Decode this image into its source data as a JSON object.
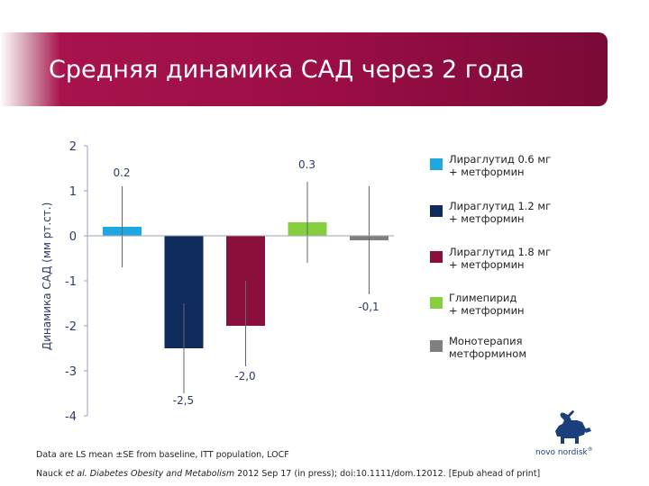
{
  "slide": {
    "title": "Средняя динамика САД через 2 года",
    "footnote": "Data are LS mean ±SE from baseline, ITT population, LOCF",
    "citation_authors": "Nauck ",
    "citation_etal": "et al. Diabetes Obesity and Metabolism",
    "citation_rest": " 2012 Sep 17 (in press); doi:10.1111/dom.12012. [Epub ahead of print]",
    "logo_text": "novo nordisk",
    "logo_mark": "®"
  },
  "colors": {
    "banner": "#9a0e45",
    "series": [
      "#1ea7e1",
      "#0f2a5c",
      "#8b0f3c",
      "#86cf3f",
      "#7f7f7f"
    ]
  },
  "legend": [
    {
      "label": "Лираглутид 0.6 мг\n+ метформин"
    },
    {
      "label": "Лираглутид 1.2 мг\n+ метформин"
    },
    {
      "label": "Лираглутид 1.8 мг\n+ метформин"
    },
    {
      "label": "Глимепирид\n+ метформин"
    },
    {
      "label": "Монотерапия\nметформином"
    }
  ],
  "chart_data": {
    "type": "bar",
    "ylabel": "Динамика САД (мм рт.ст.)",
    "ylim": [
      -4,
      2
    ],
    "yticks": [
      "2",
      "1",
      "0",
      "-1",
      "-2",
      "-3",
      "-4"
    ],
    "grid": false,
    "legend_position": "right",
    "series": [
      {
        "name": "Лираглутид 0.6 мг + метформин",
        "value": 0.2,
        "label": "0.2",
        "error_low": -0.7,
        "error_high": 1.1
      },
      {
        "name": "Лираглутид 1.2 мг + метформин",
        "value": -2.5,
        "label": "-2,5",
        "error_low": -3.5,
        "error_high": -1.5
      },
      {
        "name": "Лираглутид 1.8 мг + метформин",
        "value": -2.0,
        "label": "-2,0",
        "error_low": -2.9,
        "error_high": -1.0
      },
      {
        "name": "Глимепирид + метформин",
        "value": 0.3,
        "label": "0.3",
        "error_low": -0.6,
        "error_high": 1.2
      },
      {
        "name": "Монотерапия метформином",
        "value": -0.1,
        "label": "-0,1",
        "error_low": -1.3,
        "error_high": 1.1
      }
    ]
  }
}
